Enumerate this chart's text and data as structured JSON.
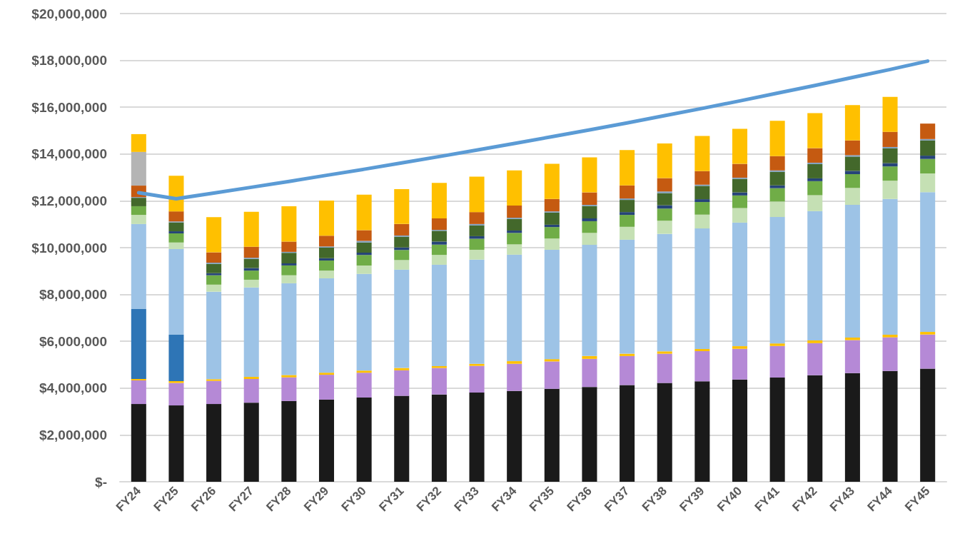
{
  "chart_data": {
    "type": "bar",
    "stacked": true,
    "grid": "y",
    "categories": [
      "FY24",
      "FY25",
      "FY26",
      "FY27",
      "FY28",
      "FY29",
      "FY30",
      "FY31",
      "FY32",
      "FY33",
      "FY34",
      "FY35",
      "FY36",
      "FY37",
      "FY38",
      "FY39",
      "FY40",
      "FY41",
      "FY42",
      "FY43",
      "FY44",
      "FY45"
    ],
    "ylim": [
      0,
      20000000
    ],
    "yticks": [
      {
        "value": 0,
        "label": "$-"
      },
      {
        "value": 2000000,
        "label": "$2,000,000"
      },
      {
        "value": 4000000,
        "label": "$4,000,000"
      },
      {
        "value": 6000000,
        "label": "$6,000,000"
      },
      {
        "value": 8000000,
        "label": "$8,000,000"
      },
      {
        "value": 10000000,
        "label": "$10,000,000"
      },
      {
        "value": 12000000,
        "label": "$12,000,000"
      },
      {
        "value": 14000000,
        "label": "$14,000,000"
      },
      {
        "value": 16000000,
        "label": "$16,000,000"
      },
      {
        "value": 18000000,
        "label": "$18,000,000"
      },
      {
        "value": 20000000,
        "label": "$20,000,000"
      }
    ],
    "series": [
      {
        "color": "#1a1a1a",
        "values": [
          3320000,
          3260000,
          3320000,
          3380000,
          3450000,
          3510000,
          3600000,
          3670000,
          3730000,
          3810000,
          3880000,
          3970000,
          4050000,
          4130000,
          4220000,
          4290000,
          4370000,
          4450000,
          4550000,
          4640000,
          4730000,
          4830000
        ]
      },
      {
        "color": "#b589d6",
        "values": [
          1010000,
          960000,
          990000,
          1010000,
          1010000,
          1060000,
          1060000,
          1090000,
          1130000,
          1140000,
          1160000,
          1170000,
          1200000,
          1240000,
          1250000,
          1290000,
          1310000,
          1350000,
          1370000,
          1410000,
          1440000,
          1460000
        ]
      },
      {
        "color": "#ffc000",
        "values": [
          60000,
          80000,
          70000,
          90000,
          100000,
          90000,
          90000,
          100000,
          80000,
          90000,
          110000,
          100000,
          120000,
          100000,
          100000,
          90000,
          110000,
          110000,
          120000,
          110000,
          110000,
          110000
        ]
      },
      {
        "color": "#2e75b6",
        "values": [
          2990000,
          1980000,
          null,
          null,
          null,
          null,
          null,
          null,
          null,
          null,
          null,
          null,
          null,
          null,
          null,
          null,
          null,
          null,
          null,
          null,
          null,
          null
        ]
      },
      {
        "color": "#9dc3e6",
        "values": [
          3630000,
          3660000,
          3740000,
          3820000,
          3920000,
          4030000,
          4130000,
          4200000,
          4330000,
          4450000,
          4550000,
          4670000,
          4750000,
          4870000,
          5020000,
          5150000,
          5280000,
          5400000,
          5520000,
          5670000,
          5800000,
          5970000
        ]
      },
      {
        "color": "#c5e0b4",
        "values": [
          390000,
          280000,
          300000,
          330000,
          340000,
          330000,
          360000,
          410000,
          420000,
          420000,
          440000,
          480000,
          510000,
          550000,
          560000,
          590000,
          620000,
          660000,
          680000,
          720000,
          780000,
          800000
        ]
      },
      {
        "color": "#70ad47",
        "values": [
          370000,
          390000,
          400000,
          390000,
          420000,
          430000,
          450000,
          430000,
          440000,
          470000,
          490000,
          490000,
          500000,
          510000,
          520000,
          540000,
          540000,
          570000,
          600000,
          590000,
          610000,
          620000
        ]
      },
      {
        "color": "#264478",
        "values": [
          null,
          90000,
          90000,
          110000,
          90000,
          100000,
          100000,
          110000,
          130000,
          110000,
          100000,
          100000,
          120000,
          120000,
          140000,
          120000,
          130000,
          120000,
          120000,
          140000,
          140000,
          140000
        ]
      },
      {
        "color": "#43682b",
        "values": [
          360000,
          380000,
          400000,
          390000,
          450000,
          450000,
          430000,
          460000,
          460000,
          460000,
          500000,
          520000,
          530000,
          520000,
          520000,
          570000,
          580000,
          580000,
          610000,
          610000,
          630000,
          650000
        ]
      },
      {
        "color": "#7f9fbf",
        "values": [
          30000,
          40000,
          50000,
          50000,
          40000,
          50000,
          70000,
          50000,
          40000,
          60000,
          50000,
          50000,
          50000,
          60000,
          70000,
          50000,
          50000,
          60000,
          60000,
          60000,
          60000,
          60000
        ]
      },
      {
        "color": "#c55a11",
        "values": [
          490000,
          430000,
          440000,
          470000,
          440000,
          460000,
          460000,
          490000,
          490000,
          510000,
          520000,
          530000,
          530000,
          560000,
          570000,
          580000,
          590000,
          610000,
          620000,
          630000,
          650000,
          660000
        ]
      },
      {
        "color": "#b4b4b4",
        "values": [
          1440000,
          null,
          null,
          null,
          null,
          null,
          null,
          null,
          null,
          null,
          null,
          null,
          null,
          null,
          null,
          null,
          null,
          null,
          null,
          null,
          null,
          null
        ]
      },
      {
        "color": "#ffc000",
        "values": [
          760000,
          1520000,
          1500000,
          1490000,
          1510000,
          1500000,
          1510000,
          1490000,
          1520000,
          1510000,
          1500000,
          1500000,
          1500000,
          1510000,
          1480000,
          1500000,
          1500000,
          1510000,
          1500000,
          1510000,
          1490000,
          null
        ]
      },
      {
        "type": "line",
        "color": "#5b9bd5",
        "marker": "none",
        "values": [
          12350000,
          12090000,
          12330000,
          12580000,
          12830000,
          13090000,
          13350000,
          13620000,
          13890000,
          14170000,
          14450000,
          14740000,
          15030000,
          15330000,
          15640000,
          15950000,
          16270000,
          16600000,
          16930000,
          17270000,
          17610000,
          17970000
        ]
      }
    ]
  }
}
